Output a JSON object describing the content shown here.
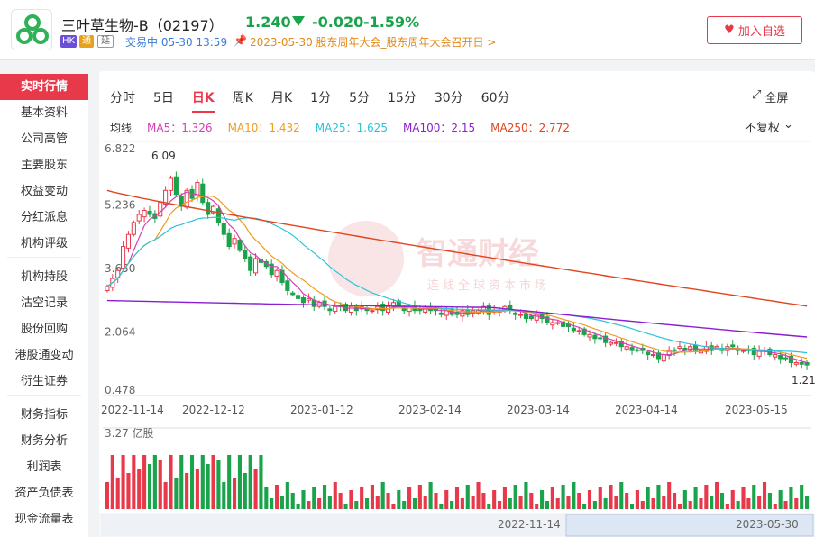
{
  "header": {
    "stock_name": "三叶草生物-B（02197）",
    "price": "1.240",
    "change": "-0.020",
    "change_pct": "-1.59%",
    "badges": [
      "HK",
      "通",
      "延"
    ],
    "trade_status": "交易中 05-30 13:59",
    "event": "2023-05-30 股东周年大会_股东周年大会召开日 >",
    "favorite_label": "加入自选",
    "down_color": "#1aa34a",
    "up_color": "#e8394b"
  },
  "sidebar": {
    "items": [
      "实时行情",
      "基本资料",
      "公司高管",
      "主要股东",
      "权益变动",
      "分红派息",
      "机构评级",
      "机构持股",
      "沽空记录",
      "股份回购",
      "港股通变动",
      "衍生证券",
      "财务指标",
      "财务分析",
      "利润表",
      "资产负债表",
      "现金流量表"
    ]
  },
  "tabs": [
    "分时",
    "5日",
    "日K",
    "周K",
    "月K",
    "1分",
    "5分",
    "15分",
    "30分",
    "60分"
  ],
  "active_tab": "日K",
  "fullscreen_label": "全屏",
  "adjust_label": "不复权",
  "ma": {
    "label": "均线",
    "ma5": "MA5：1.326",
    "ma10": "MA10：1.432",
    "ma25": "MA25：1.625",
    "ma100": "MA100：2.15",
    "ma250": "MA250：2.772",
    "colors": {
      "ma5": "#d43fb5",
      "ma10": "#f29b1d",
      "ma25": "#2bc4d8",
      "ma100": "#8a1fd1",
      "ma250": "#e0451f"
    }
  },
  "watermark": {
    "title": "智通财经",
    "subtitle": "连线全球资本市场"
  },
  "chart_data": {
    "type": "candlestick",
    "y_ticks": [
      "6.822",
      "5.236",
      "3.650",
      "2.064",
      "0.478"
    ],
    "x_labels": [
      "2022-11-14",
      "2022-12-12",
      "2023-01-12",
      "2023-02-14",
      "2023-03-14",
      "2023-04-14",
      "2023-05-15"
    ],
    "high_label": "6.09",
    "low_label": "1.21",
    "ylim": [
      0.478,
      6.822
    ],
    "close": [
      3.2,
      3.4,
      3.6,
      4.2,
      4.5,
      4.8,
      5.0,
      5.1,
      5.0,
      4.9,
      5.3,
      5.6,
      5.9,
      5.5,
      5.2,
      5.6,
      5.4,
      5.8,
      5.3,
      5.0,
      5.2,
      4.8,
      4.5,
      4.2,
      4.4,
      4.1,
      3.9,
      3.6,
      3.9,
      3.8,
      3.7,
      3.5,
      3.6,
      3.3,
      3.1,
      3.0,
      2.9,
      2.8,
      2.9,
      2.7,
      2.8,
      2.7,
      2.6,
      2.7,
      2.7,
      2.6,
      2.7,
      2.6,
      2.7,
      2.6,
      2.6,
      2.7,
      2.6,
      2.7,
      2.8,
      2.7,
      2.6,
      2.7,
      2.6,
      2.6,
      2.7,
      2.6,
      2.6,
      2.5,
      2.6,
      2.5,
      2.5,
      2.6,
      2.5,
      2.6,
      2.6,
      2.7,
      2.5,
      2.6,
      2.6,
      2.7,
      2.6,
      2.5,
      2.5,
      2.4,
      2.4,
      2.5,
      2.4,
      2.3,
      2.3,
      2.3,
      2.2,
      2.2,
      2.1,
      2.1,
      2.0,
      2.0,
      1.9,
      1.9,
      1.8,
      1.8,
      1.8,
      1.7,
      1.7,
      1.6,
      1.6,
      1.6,
      1.5,
      1.5,
      1.4,
      1.5,
      1.6,
      1.6,
      1.7,
      1.6,
      1.7,
      1.6,
      1.6,
      1.7,
      1.6,
      1.7,
      1.6,
      1.7,
      1.7,
      1.6,
      1.6,
      1.6,
      1.5,
      1.6,
      1.6,
      1.5,
      1.5,
      1.4,
      1.4,
      1.3,
      1.3,
      1.26,
      1.24
    ],
    "volume_label": "3.27 亿股",
    "navigator_labels": [
      "2022-11-14",
      "2023-05-30"
    ]
  }
}
